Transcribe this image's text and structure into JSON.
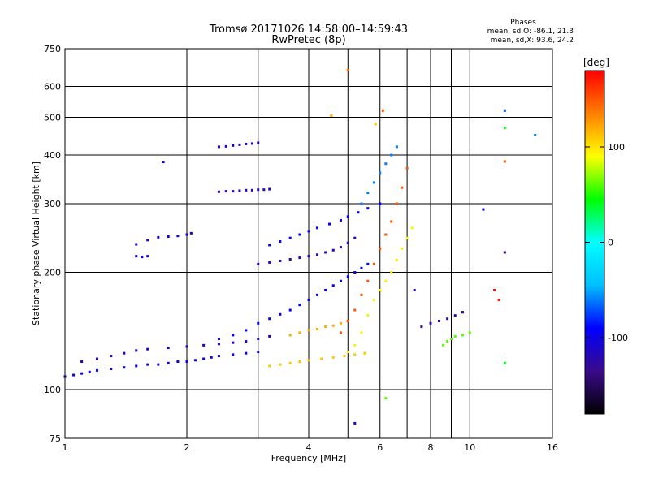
{
  "chart_data": {
    "type": "scatter",
    "title": "Tromsø 20171026 14:58:00–14:59:43",
    "subtitle": "RwPretec (8p)",
    "xlabel": "Frequency [MHz]",
    "ylabel": "Stationary phase Virtual Height [km]",
    "x_scale": "log",
    "y_scale": "log",
    "xlim": [
      1,
      16
    ],
    "ylim": [
      75,
      750
    ],
    "x_ticks": [
      1,
      2,
      4,
      6,
      8,
      10,
      16
    ],
    "x_minor_ticks": [
      3,
      5,
      7,
      9
    ],
    "y_ticks": [
      75,
      100,
      200,
      300,
      400,
      500,
      600,
      750
    ],
    "grid": true,
    "phases": {
      "title": "Phases",
      "line1": "mean, sd,O: -86.1, 21.3",
      "line2": "mean, sd,X:  93.6, 24.2"
    },
    "colorbar": {
      "label": "[deg]",
      "range": [
        -180,
        180
      ],
      "ticks": [
        100,
        0,
        -100
      ],
      "colormap": [
        "#000000",
        "#3a0a8a",
        "#0000ff",
        "#00bfff",
        "#00ffff",
        "#00ff00",
        "#ffff00",
        "#ff8000",
        "#ff0000"
      ]
    },
    "series": [
      {
        "x": [
          1.0,
          1.05,
          1.1,
          1.15,
          1.2,
          1.3,
          1.4,
          1.5,
          1.6,
          1.7,
          1.8,
          1.9,
          2.0,
          2.1,
          2.2,
          2.3,
          2.4,
          2.6,
          2.8,
          3.0
        ],
        "y": [
          108,
          109,
          110,
          111,
          112,
          113,
          114,
          115,
          116,
          116,
          117,
          118,
          118,
          119,
          120,
          121,
          122,
          123,
          124,
          125
        ],
        "phase": -100
      },
      {
        "x": [
          1.1,
          1.2,
          1.3,
          1.4,
          1.5,
          1.6,
          1.8,
          2.0,
          2.2,
          2.4,
          2.6,
          2.8,
          3.0,
          3.2
        ],
        "y": [
          118,
          120,
          122,
          124,
          126,
          127,
          128,
          129,
          130,
          131,
          132,
          133,
          135,
          137
        ],
        "phase": -110
      },
      {
        "x": [
          2.4,
          2.5,
          2.6,
          2.7,
          2.8,
          2.9,
          3.0
        ],
        "y": [
          420,
          421,
          423,
          425,
          427,
          428,
          430
        ],
        "phase": -110
      },
      {
        "x": [
          2.4,
          2.5,
          2.6,
          2.7,
          2.8,
          2.9,
          3.0,
          3.1,
          3.2
        ],
        "y": [
          322,
          323,
          323,
          324,
          325,
          325,
          326,
          326,
          327
        ],
        "phase": -115
      },
      {
        "x": [
          1.5,
          1.6,
          1.7,
          1.8,
          1.9,
          2.0,
          2.05
        ],
        "y": [
          236,
          242,
          246,
          247,
          248,
          250,
          252
        ],
        "phase": -105
      },
      {
        "x": [
          1.5,
          1.55,
          1.6
        ],
        "y": [
          220,
          219,
          220
        ],
        "phase": -95
      },
      {
        "x": [
          2.4,
          2.6,
          2.8,
          3.0,
          3.2,
          3.4,
          3.6,
          3.8,
          4.0,
          4.2,
          4.4,
          4.6,
          4.8,
          5.0,
          5.2,
          5.4,
          5.6
        ],
        "y": [
          135,
          138,
          142,
          148,
          152,
          156,
          160,
          165,
          170,
          175,
          180,
          185,
          190,
          195,
          200,
          205,
          210
        ],
        "phase": -90
      },
      {
        "x": [
          3.0,
          3.2,
          3.4,
          3.6,
          3.8,
          4.0,
          4.2,
          4.4,
          4.6,
          4.8,
          5.0,
          5.2
        ],
        "y": [
          210,
          212,
          214,
          216,
          218,
          220,
          222,
          225,
          228,
          232,
          238,
          245
        ],
        "phase": -115
      },
      {
        "x": [
          3.2,
          3.4,
          3.6,
          3.8,
          4.0,
          4.2,
          4.5,
          4.8,
          5.0,
          5.3,
          5.6,
          6.0
        ],
        "y": [
          235,
          240,
          245,
          250,
          255,
          260,
          266,
          272,
          278,
          285,
          292,
          300
        ],
        "phase": -90
      },
      {
        "x": [
          3.2,
          3.4,
          3.6,
          3.8,
          4.0,
          4.3,
          4.6,
          4.9,
          5.2,
          5.5
        ],
        "y": [
          115,
          116,
          117,
          118,
          119,
          120,
          121,
          122,
          123,
          124
        ],
        "phase": 110
      },
      {
        "x": [
          3.6,
          3.8,
          4.0,
          4.2,
          4.4,
          4.6,
          4.8,
          5.0
        ],
        "y": [
          138,
          140,
          142,
          143,
          145,
          146,
          148,
          150
        ],
        "phase": 120
      },
      {
        "x": [
          4.8,
          5.0,
          5.2,
          5.4,
          5.6,
          5.8,
          6.0,
          6.2,
          6.4,
          6.6,
          6.8,
          7.0
        ],
        "y": [
          140,
          150,
          160,
          175,
          190,
          210,
          230,
          250,
          270,
          300,
          330,
          370
        ],
        "phase": 150
      },
      {
        "x": [
          5.0,
          5.2,
          5.4,
          5.6,
          5.8,
          6.0,
          6.2,
          6.4,
          6.6,
          6.8,
          7.0,
          7.2
        ],
        "y": [
          125,
          130,
          140,
          155,
          170,
          180,
          190,
          200,
          215,
          230,
          245,
          260
        ],
        "phase": 95
      },
      {
        "x": [
          5.4,
          5.6,
          5.8,
          6.0,
          6.2,
          6.4,
          6.6
        ],
        "y": [
          300,
          320,
          340,
          360,
          380,
          400,
          420
        ],
        "phase": -60
      },
      {
        "x": [
          7.6,
          8.0,
          8.4,
          8.8,
          9.2,
          9.6
        ],
        "y": [
          145,
          148,
          150,
          152,
          155,
          158
        ],
        "phase": -125
      },
      {
        "x": [
          8.6,
          8.8,
          9.0,
          9.2,
          9.6,
          10.0
        ],
        "y": [
          130,
          133,
          135,
          137,
          138,
          140
        ],
        "phase": 60
      }
    ],
    "isolated_points": [
      {
        "x": 1.75,
        "y": 384,
        "phase": -100
      },
      {
        "x": 4.55,
        "y": 505,
        "phase": 120
      },
      {
        "x": 5.0,
        "y": 660,
        "phase": 140
      },
      {
        "x": 5.85,
        "y": 480,
        "phase": 110
      },
      {
        "x": 6.1,
        "y": 520,
        "phase": 150
      },
      {
        "x": 10.8,
        "y": 290,
        "phase": -100
      },
      {
        "x": 12.2,
        "y": 520,
        "phase": -70
      },
      {
        "x": 12.2,
        "y": 470,
        "phase": 40
      },
      {
        "x": 12.2,
        "y": 385,
        "phase": 150
      },
      {
        "x": 12.2,
        "y": 225,
        "phase": -140
      },
      {
        "x": 12.2,
        "y": 117,
        "phase": 40
      },
      {
        "x": 14.5,
        "y": 450,
        "phase": -60
      },
      {
        "x": 11.5,
        "y": 180,
        "phase": 175
      },
      {
        "x": 11.8,
        "y": 170,
        "phase": 175
      },
      {
        "x": 9.6,
        "y": 158,
        "phase": -130
      },
      {
        "x": 7.3,
        "y": 180,
        "phase": -120
      },
      {
        "x": 6.2,
        "y": 95,
        "phase": 60
      },
      {
        "x": 5.2,
        "y": 82,
        "phase": -110
      }
    ]
  }
}
